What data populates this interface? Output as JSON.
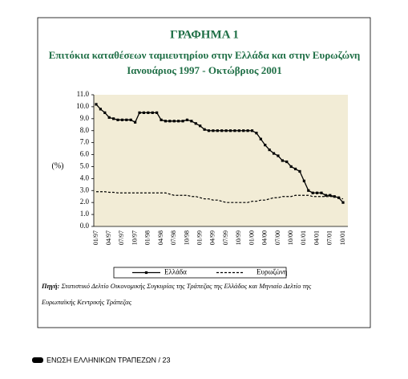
{
  "chart_data": {
    "type": "line",
    "title": "ΓΡΑΦΗΜΑ 1",
    "subtitle": [
      "Επιτόκια καταθέσεων ταμιευτηρίου στην Ελλάδα και στην Ευρωζώνη",
      "Ιανουάριος 1997 - Οκτώβριος 2001"
    ],
    "ylabel": "(%)",
    "categories": [
      "01/97",
      null,
      null,
      "04/97",
      null,
      null,
      "07/97",
      null,
      null,
      "10/97",
      null,
      null,
      "01/98",
      null,
      null,
      "04/98",
      null,
      null,
      "07/98",
      null,
      null,
      "10/98",
      null,
      null,
      "01/99",
      null,
      null,
      "04/99",
      null,
      null,
      "07/99",
      null,
      null,
      "10/99",
      null,
      null,
      "01/00",
      null,
      null,
      "04/00",
      null,
      null,
      "07/00",
      null,
      null,
      "10/00",
      null,
      null,
      "01/01",
      null,
      null,
      "04/01",
      null,
      null,
      "07/01",
      null,
      null,
      "10/01"
    ],
    "series": [
      {
        "name": "Ελλάδα",
        "color": "#000000",
        "marker": "square",
        "dash": false,
        "values": [
          10.2,
          9.8,
          9.5,
          9.1,
          9.0,
          8.9,
          8.9,
          8.9,
          8.9,
          8.7,
          9.5,
          9.5,
          9.5,
          9.5,
          9.5,
          8.9,
          8.8,
          8.8,
          8.8,
          8.8,
          8.8,
          8.9,
          8.8,
          8.6,
          8.4,
          8.1,
          8.0,
          8.0,
          8.0,
          8.0,
          8.0,
          8.0,
          8.0,
          8.0,
          8.0,
          8.0,
          8.0,
          7.8,
          7.3,
          6.8,
          6.4,
          6.1,
          5.9,
          5.5,
          5.4,
          5.0,
          4.8,
          4.6,
          3.8,
          3.0,
          2.8,
          2.8,
          2.8,
          2.6,
          2.6,
          2.5,
          2.4,
          2.0
        ]
      },
      {
        "name": "Ευρωζώνη",
        "color": "#000000",
        "marker": null,
        "dash": true,
        "values": [
          2.9,
          2.9,
          2.9,
          2.85,
          2.85,
          2.8,
          2.8,
          2.8,
          2.8,
          2.8,
          2.8,
          2.8,
          2.8,
          2.8,
          2.8,
          2.8,
          2.8,
          2.7,
          2.6,
          2.6,
          2.6,
          2.6,
          2.5,
          2.5,
          2.4,
          2.3,
          2.3,
          2.2,
          2.2,
          2.1,
          2.0,
          2.0,
          2.0,
          2.0,
          2.0,
          2.0,
          2.1,
          2.1,
          2.2,
          2.2,
          2.3,
          2.4,
          2.4,
          2.5,
          2.5,
          2.5,
          2.6,
          2.6,
          2.6,
          2.6,
          2.5,
          2.5,
          2.5,
          2.5,
          2.5,
          2.5,
          2.4,
          2.3
        ]
      }
    ],
    "ylim": [
      0,
      11
    ],
    "yticks": [
      {
        "value": 0,
        "label": "0.0"
      },
      {
        "value": 1,
        "label": "1.0"
      },
      {
        "value": 2,
        "label": "2.0"
      },
      {
        "value": 3,
        "label": "3.0"
      },
      {
        "value": 4,
        "label": "4.0"
      },
      {
        "value": 5,
        "label": "5.0"
      },
      {
        "value": 6,
        "label": "6.0"
      },
      {
        "value": 7,
        "label": "7.0"
      },
      {
        "value": 8,
        "label": "8.0"
      },
      {
        "value": 9,
        "label": "9.0"
      },
      {
        "value": 10,
        "label": "10.0"
      },
      {
        "value": 11,
        "label": "11.0"
      }
    ],
    "plot_background": "#f2ecd6"
  },
  "source": {
    "label": "Πηγή:",
    "lines": [
      "Στατιστικό Δελτίο Οικονομικής Συγκυρίας της Τράπεζας της Ελλάδος και Μηνιαίο Δελτίο της",
      "Ευρωπαϊκής Κεντρικής Τράπεζας"
    ]
  },
  "footer": "ΕΝΩΣΗ ΕΛΛΗΝΙΚΩΝ ΤΡΑΠΕΖΩΝ / 23"
}
